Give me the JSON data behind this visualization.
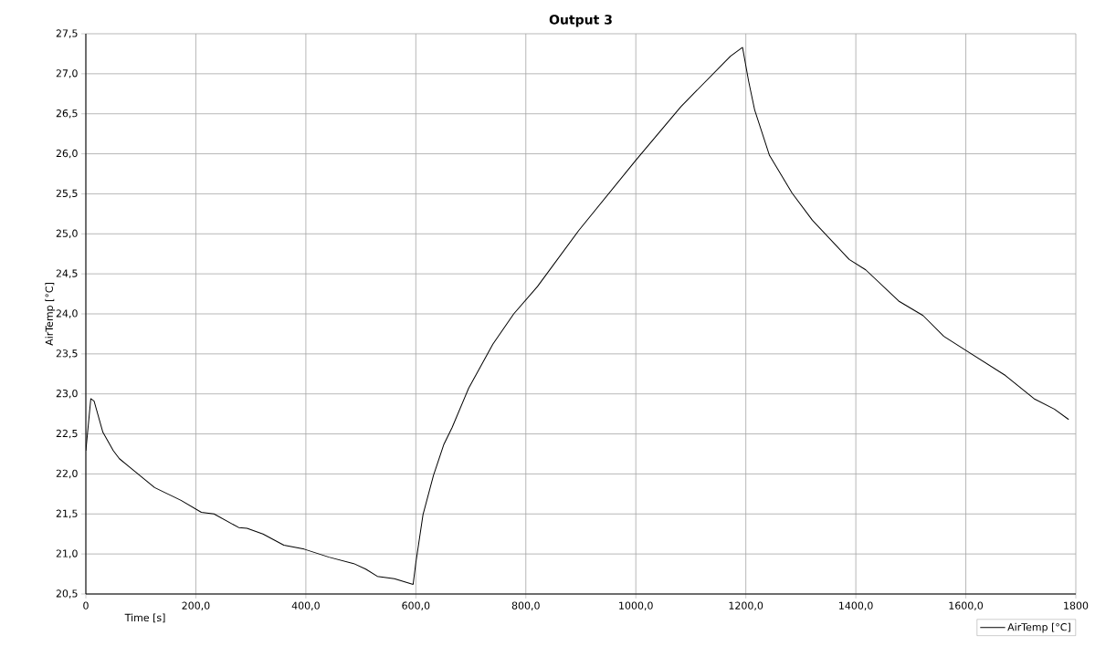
{
  "chart_data": {
    "type": "line",
    "title": "Output 3",
    "xlabel": "Time [s]",
    "ylabel": "AirTemp [°C]",
    "series": [
      {
        "name": "AirTemp [°C]",
        "color": "#000000",
        "x": [
          0,
          9,
          15,
          31,
          50,
          61,
          84,
          125,
          173,
          210,
          233,
          278,
          293,
          322,
          360,
          397,
          442,
          487,
          509,
          530,
          561,
          595,
          600,
          613,
          632,
          651,
          666,
          696,
          740,
          778,
          821,
          896,
          1000,
          1082,
          1172,
          1194,
          1205,
          1216,
          1243,
          1284,
          1321,
          1388,
          1418,
          1478,
          1522,
          1560,
          1601,
          1672,
          1724,
          1761,
          1787
        ],
        "values": [
          22.29,
          22.94,
          22.91,
          22.52,
          22.29,
          22.19,
          22.06,
          21.83,
          21.67,
          21.52,
          21.5,
          21.33,
          21.32,
          21.25,
          21.11,
          21.06,
          20.96,
          20.88,
          20.81,
          20.72,
          20.69,
          20.62,
          20.89,
          21.49,
          21.98,
          22.37,
          22.58,
          23.07,
          23.62,
          24.0,
          24.34,
          25.04,
          25.92,
          26.59,
          27.22,
          27.33,
          26.91,
          26.55,
          25.98,
          25.51,
          25.17,
          24.68,
          24.55,
          24.16,
          23.98,
          23.72,
          23.54,
          23.23,
          22.94,
          22.81,
          22.68
        ]
      }
    ],
    "xlim": [
      0,
      1800
    ],
    "xticks": [
      {
        "value": 0,
        "label": "0"
      },
      {
        "value": 200,
        "label": "200,0"
      },
      {
        "value": 400,
        "label": "400,0"
      },
      {
        "value": 600,
        "label": "600,0"
      },
      {
        "value": 800,
        "label": "800,0"
      },
      {
        "value": 1000,
        "label": "1000,0"
      },
      {
        "value": 1200,
        "label": "1200,0"
      },
      {
        "value": 1400,
        "label": "1400,0"
      },
      {
        "value": 1600,
        "label": "1600,0"
      },
      {
        "value": 1800,
        "label": "1800"
      }
    ],
    "ylim": [
      20.5,
      27.5
    ],
    "yticks": [
      {
        "value": 20.5,
        "label": "20,5"
      },
      {
        "value": 21,
        "label": "21,0"
      },
      {
        "value": 21.5,
        "label": "21,5"
      },
      {
        "value": 22,
        "label": "22,0"
      },
      {
        "value": 22.5,
        "label": "22,5"
      },
      {
        "value": 23,
        "label": "23,0"
      },
      {
        "value": 23.5,
        "label": "23,5"
      },
      {
        "value": 24,
        "label": "24,0"
      },
      {
        "value": 24.5,
        "label": "24,5"
      },
      {
        "value": 25,
        "label": "25,0"
      },
      {
        "value": 25.5,
        "label": "25,5"
      },
      {
        "value": 26,
        "label": "26,0"
      },
      {
        "value": 26.5,
        "label": "26,5"
      },
      {
        "value": 27,
        "label": "27,0"
      },
      {
        "value": 27.5,
        "label": "27,5"
      }
    ],
    "grid": true,
    "legend": "bottom right",
    "marker": "none",
    "line_style": "solid"
  }
}
